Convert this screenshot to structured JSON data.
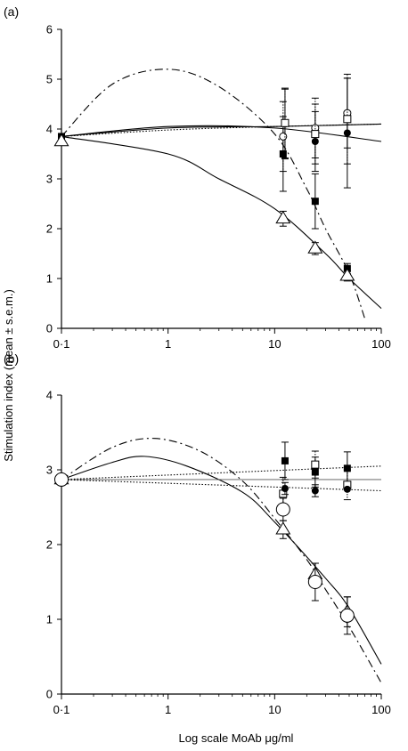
{
  "figure": {
    "ylabel": "Stimulation index (mean ± s.e.m.)",
    "xlabel": "Log scale MoAb μg/ml"
  },
  "chart_data": [
    {
      "type": "scatter",
      "panel_label": "(a)",
      "xscale": "log",
      "xlim": [
        0.1,
        100
      ],
      "ylim": [
        0,
        6
      ],
      "xticks": [
        "0·1",
        "1",
        "10",
        "100"
      ],
      "yticks": [
        "0",
        "1",
        "2",
        "3",
        "4",
        "5",
        "6"
      ],
      "grid": false,
      "series": [
        {
          "marker": "filled-square",
          "x": [
            0.1,
            12,
            24,
            48
          ],
          "y": [
            3.85,
            3.5,
            2.55,
            1.2
          ],
          "err": [
            0.05,
            0.75,
            0.55,
            0.1
          ]
        },
        {
          "marker": "open-triangle",
          "x": [
            0.1,
            12,
            24,
            48
          ],
          "y": [
            3.75,
            2.2,
            1.6,
            1.05
          ],
          "err": [
            0.05,
            0.15,
            0.12,
            0.1
          ]
        },
        {
          "marker": "filled-circle",
          "x": [
            12.5,
            24,
            48
          ],
          "y": [
            4.1,
            3.75,
            3.92
          ],
          "err": [
            0.7,
            0.6,
            1.1
          ]
        },
        {
          "marker": "open-circle",
          "x": [
            12,
            24,
            48
          ],
          "y": [
            3.85,
            4.02,
            4.32
          ],
          "err": [
            0.7,
            0.6,
            0.7
          ]
        },
        {
          "marker": "open-square",
          "x": [
            12.5,
            24,
            48
          ],
          "y": [
            4.12,
            3.9,
            4.2
          ],
          "err": [
            0.7,
            0.6,
            0.9
          ]
        }
      ],
      "fits": [
        {
          "style": "dash-dot",
          "points": [
            [
              0.1,
              3.85
            ],
            [
              0.3,
              4.9
            ],
            [
              1,
              5.2
            ],
            [
              3,
              4.85
            ],
            [
              10,
              3.9
            ],
            [
              20,
              2.8
            ],
            [
              30,
              2.0
            ],
            [
              50,
              1.1
            ],
            [
              70,
              0.2
            ]
          ]
        },
        {
          "style": "solid",
          "points": [
            [
              0.1,
              3.85
            ],
            [
              1,
              3.5
            ],
            [
              3,
              3.0
            ],
            [
              10,
              2.4
            ],
            [
              30,
              1.5
            ],
            [
              50,
              1.0
            ],
            [
              100,
              0.4
            ]
          ]
        },
        {
          "style": "solid",
          "points": [
            [
              0.1,
              3.85
            ],
            [
              1,
              4.02
            ],
            [
              10,
              4.05
            ],
            [
              100,
              4.1
            ]
          ]
        },
        {
          "style": "solid",
          "points": [
            [
              0.1,
              3.85
            ],
            [
              1,
              4.05
            ],
            [
              10,
              4.02
            ],
            [
              100,
              3.75
            ]
          ]
        },
        {
          "style": "dotted",
          "points": [
            [
              0.1,
              3.85
            ],
            [
              1,
              3.98
            ],
            [
              10,
              4.05
            ],
            [
              100,
              4.1
            ]
          ]
        }
      ]
    },
    {
      "type": "scatter",
      "panel_label": "(b)",
      "xscale": "log",
      "xlim": [
        0.1,
        100
      ],
      "ylim": [
        0,
        4
      ],
      "xticks": [
        "0·1",
        "1",
        "10",
        "100"
      ],
      "yticks": [
        "0",
        "1",
        "2",
        "3",
        "4"
      ],
      "grid": false,
      "series": [
        {
          "marker": "filled-square",
          "x": [
            0.1,
            12.5,
            24,
            48
          ],
          "y": [
            2.87,
            3.12,
            2.97,
            3.02
          ],
          "err": [
            0.03,
            0.25,
            0.2,
            0.22
          ]
        },
        {
          "marker": "open-square",
          "x": [
            0.1,
            12,
            24,
            48
          ],
          "y": [
            2.87,
            2.68,
            3.07,
            2.8
          ],
          "err": [
            0.03,
            0.22,
            0.18,
            0.2
          ]
        },
        {
          "marker": "filled-circle",
          "x": [
            0.1,
            12.5,
            24,
            48
          ],
          "y": [
            2.87,
            2.75,
            2.72,
            2.74
          ],
          "err": [
            0.03,
            0.08,
            0.08,
            0.05
          ]
        },
        {
          "marker": "open-triangle",
          "x": [
            0.1,
            12,
            24,
            48
          ],
          "y": [
            2.87,
            2.2,
            1.6,
            1.1
          ],
          "err": [
            0.03,
            0.12,
            0.15,
            0.2
          ]
        },
        {
          "marker": "large-open-circle",
          "x": [
            0.1,
            12,
            24,
            48
          ],
          "y": [
            2.87,
            2.47,
            1.5,
            1.05
          ],
          "err": [
            0.03,
            0.15,
            0.25,
            0.25
          ]
        }
      ],
      "fits": [
        {
          "style": "dash-dot",
          "points": [
            [
              0.1,
              2.87
            ],
            [
              0.3,
              3.3
            ],
            [
              0.75,
              3.42
            ],
            [
              2,
              3.25
            ],
            [
              5,
              2.85
            ],
            [
              10,
              2.35
            ],
            [
              20,
              1.8
            ],
            [
              30,
              1.4
            ],
            [
              50,
              0.9
            ],
            [
              100,
              0.15
            ]
          ]
        },
        {
          "style": "solid",
          "points": [
            [
              0.1,
              2.87
            ],
            [
              0.3,
              3.1
            ],
            [
              0.6,
              3.18
            ],
            [
              1.5,
              3.05
            ],
            [
              5,
              2.7
            ],
            [
              10,
              2.3
            ],
            [
              30,
              1.55
            ],
            [
              50,
              1.15
            ],
            [
              100,
              0.4
            ]
          ]
        },
        {
          "style": "dotted",
          "points": [
            [
              0.1,
              2.87
            ],
            [
              1,
              2.93
            ],
            [
              10,
              2.99
            ],
            [
              100,
              3.05
            ]
          ]
        },
        {
          "style": "solid-gray",
          "points": [
            [
              0.1,
              2.87
            ],
            [
              100,
              2.87
            ]
          ]
        },
        {
          "style": "dotted",
          "points": [
            [
              0.1,
              2.87
            ],
            [
              1,
              2.82
            ],
            [
              10,
              2.77
            ],
            [
              100,
              2.72
            ]
          ]
        }
      ]
    }
  ]
}
